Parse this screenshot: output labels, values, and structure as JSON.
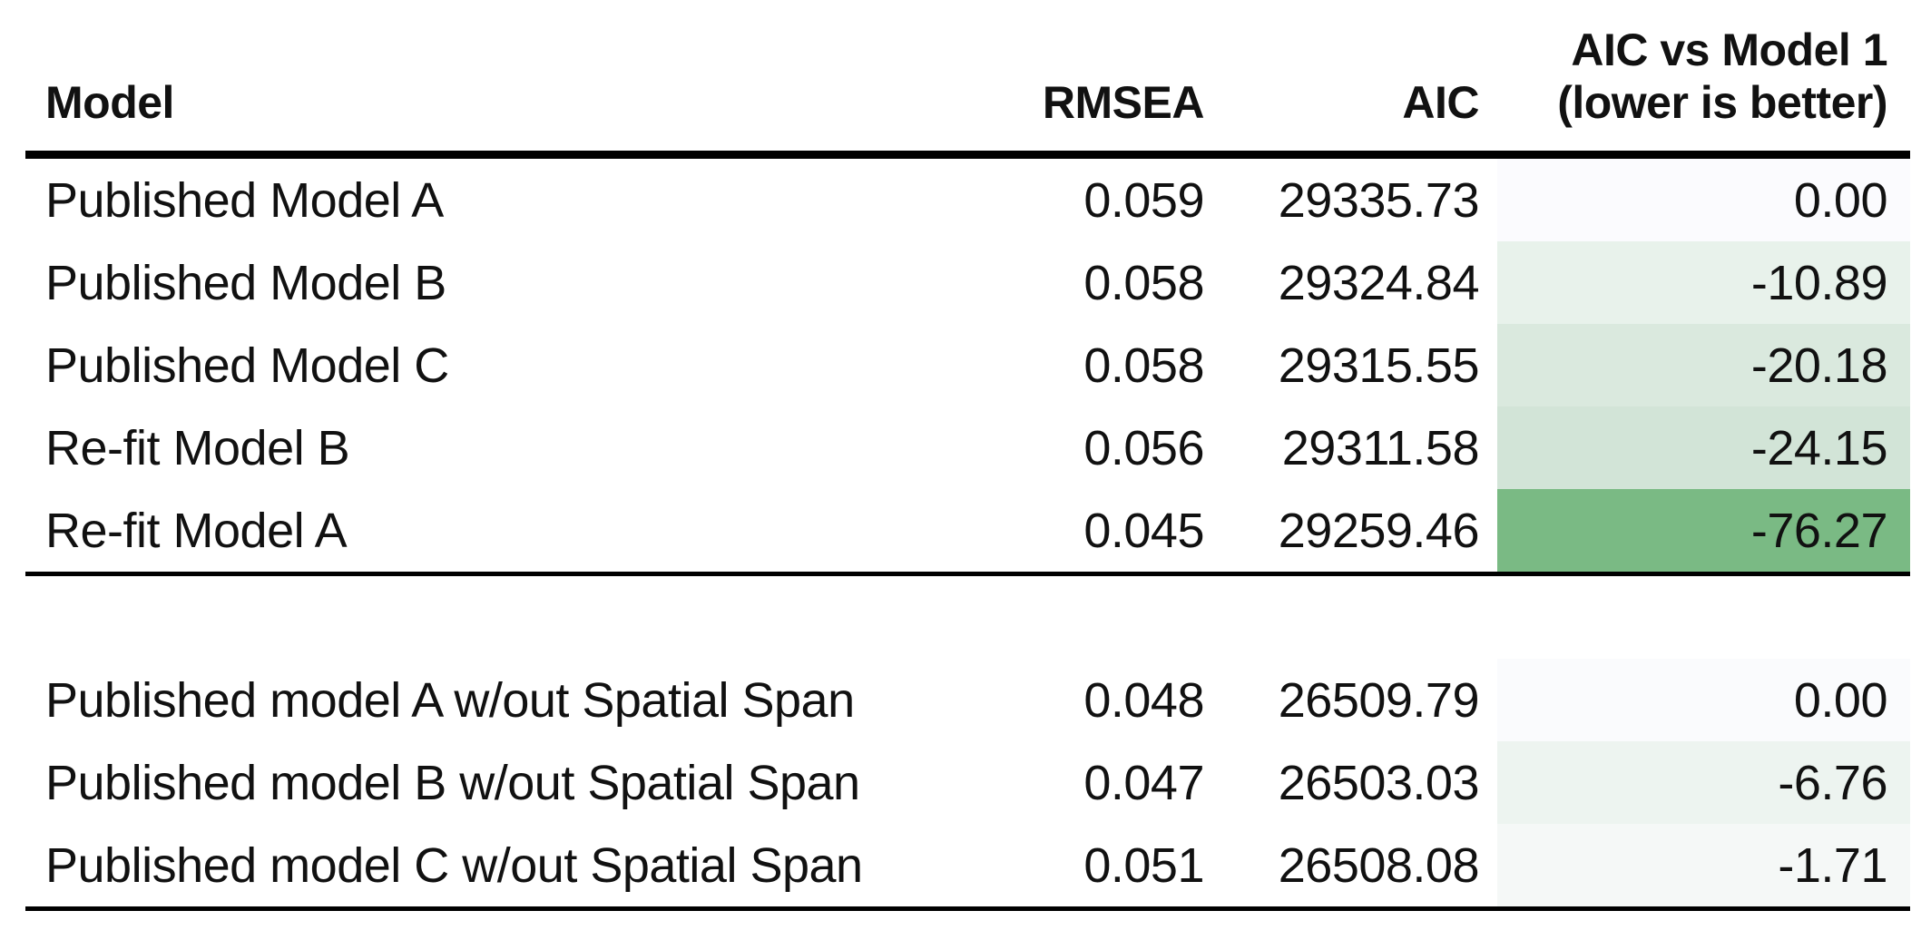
{
  "table": {
    "headers": {
      "model": "Model",
      "rmsea": "RMSEA",
      "aic": "AIC",
      "diff_line1": "AIC vs Model 1",
      "diff_line2": "(lower is better)"
    },
    "sections": [
      {
        "rows": [
          {
            "model": "Published Model A",
            "rmsea": "0.059",
            "aic": "29335.73",
            "diff": "0.00",
            "diff_bg": "#FBFBFE"
          },
          {
            "model": "Published Model B",
            "rmsea": "0.058",
            "aic": "29324.84",
            "diff": "-10.89",
            "diff_bg": "#E8F2EB"
          },
          {
            "model": "Published Model C",
            "rmsea": "0.058",
            "aic": "29315.55",
            "diff": "-20.18",
            "diff_bg": "#DAE9DE"
          },
          {
            "model": "Re-fit Model B",
            "rmsea": "0.056",
            "aic": "29311.58",
            "diff": "-24.15",
            "diff_bg": "#D2E4D7"
          },
          {
            "model": "Re-fit Model A",
            "rmsea": "0.045",
            "aic": "29259.46",
            "diff": "-76.27",
            "diff_bg": "#7ABA84"
          }
        ]
      },
      {
        "rows": [
          {
            "model": "Published model A w/out Spatial Span",
            "rmsea": "0.048",
            "aic": "26509.79",
            "diff": "0.00",
            "diff_bg": "#FAFBFD"
          },
          {
            "model": "Published model B w/out Spatial Span",
            "rmsea": "0.047",
            "aic": "26503.03",
            "diff": "-6.76",
            "diff_bg": "#EDF4F0"
          },
          {
            "model": "Published model C w/out Spatial Span",
            "rmsea": "0.051",
            "aic": "26508.08",
            "diff": "-1.71",
            "diff_bg": "#F5F8F7"
          }
        ]
      }
    ]
  },
  "colors": {
    "rule": "#000000",
    "text": "#111111",
    "color_scale_low_green": "#7ABA84",
    "color_scale_high_white": "#FBFBFE"
  },
  "chart_data": {
    "type": "table",
    "columns": [
      "Model",
      "RMSEA",
      "AIC",
      "AIC vs Model 1 (lower is better)"
    ],
    "sections": [
      {
        "rows": [
          [
            "Published Model A",
            0.059,
            29335.73,
            0.0
          ],
          [
            "Published Model B",
            0.058,
            29324.84,
            -10.89
          ],
          [
            "Published Model C",
            0.058,
            29315.55,
            -20.18
          ],
          [
            "Re-fit Model B",
            0.056,
            29311.58,
            -24.15
          ],
          [
            "Re-fit Model A",
            0.045,
            29259.46,
            -76.27
          ]
        ]
      },
      {
        "rows": [
          [
            "Published model A w/out Spatial Span",
            0.048,
            26509.79,
            0.0
          ],
          [
            "Published model B w/out Spatial Span",
            0.047,
            26503.03,
            -6.76
          ],
          [
            "Published model C w/out Spatial Span",
            0.051,
            26508.08,
            -1.71
          ]
        ]
      }
    ],
    "layout_hints": {
      "last_column_formatting": "green color scale, more negative = darker green",
      "numeric_columns_alignment": "right",
      "header_rule": "thick black",
      "section_and_bottom_rules": "thin black"
    }
  }
}
